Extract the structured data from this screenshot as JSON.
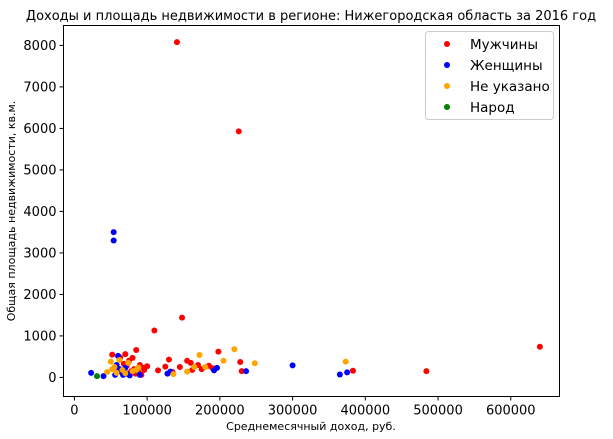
{
  "chart_data": {
    "type": "scatter",
    "title": "Доходы и площадь недвижимости в регионе: Нижегородская область за 2016 год",
    "xlabel": "Среднемесячный доход, руб.",
    "ylabel": "Общая площадь недвижимости, кв.м.",
    "xlim": [
      -15000,
      667000
    ],
    "ylim": [
      -460,
      8480
    ],
    "xticks": [
      0,
      100000,
      200000,
      300000,
      400000,
      500000,
      600000
    ],
    "xtick_labels": [
      "0",
      "100000",
      "200000",
      "300000",
      "400000",
      "500000",
      "600000"
    ],
    "yticks": [
      0,
      1000,
      2000,
      3000,
      4000,
      5000,
      6000,
      7000,
      8000
    ],
    "ytick_labels": [
      "0",
      "1000",
      "2000",
      "3000",
      "4000",
      "5000",
      "6000",
      "7000",
      "8000"
    ],
    "grid": false,
    "legend_position": "top-right",
    "series": [
      {
        "name": "Мужчины",
        "color": "#ff0000",
        "points": [
          [
            141000,
            8080
          ],
          [
            226000,
            5930
          ],
          [
            148000,
            1440
          ],
          [
            110000,
            1130
          ],
          [
            640000,
            740
          ],
          [
            484000,
            150
          ],
          [
            383000,
            160
          ],
          [
            52000,
            550
          ],
          [
            63000,
            480
          ],
          [
            70000,
            560
          ],
          [
            75000,
            400
          ],
          [
            80000,
            470
          ],
          [
            85000,
            660
          ],
          [
            90000,
            300
          ],
          [
            95000,
            230
          ],
          [
            100000,
            270
          ],
          [
            88000,
            120
          ],
          [
            78000,
            150
          ],
          [
            72000,
            280
          ],
          [
            82000,
            200
          ],
          [
            115000,
            170
          ],
          [
            125000,
            260
          ],
          [
            130000,
            430
          ],
          [
            145000,
            250
          ],
          [
            155000,
            400
          ],
          [
            160000,
            350
          ],
          [
            170000,
            300
          ],
          [
            175000,
            200
          ],
          [
            185000,
            280
          ],
          [
            190000,
            220
          ],
          [
            198000,
            620
          ],
          [
            228000,
            370
          ],
          [
            230000,
            150
          ],
          [
            96000,
            180
          ],
          [
            84000,
            90
          ],
          [
            68000,
            330
          ],
          [
            60000,
            150
          ],
          [
            92000,
            60
          ],
          [
            135000,
            130
          ],
          [
            162000,
            180
          ]
        ]
      },
      {
        "name": "Женщины",
        "color": "#0000ff",
        "points": [
          [
            54000,
            3500
          ],
          [
            54000,
            3300
          ],
          [
            23000,
            110
          ],
          [
            40000,
            30
          ],
          [
            56000,
            60
          ],
          [
            60000,
            520
          ],
          [
            62000,
            200
          ],
          [
            65000,
            120
          ],
          [
            67000,
            60
          ],
          [
            70000,
            230
          ],
          [
            72000,
            90
          ],
          [
            76000,
            50
          ],
          [
            58000,
            300
          ],
          [
            90000,
            60
          ],
          [
            128000,
            90
          ],
          [
            132000,
            140
          ],
          [
            192000,
            170
          ],
          [
            196000,
            230
          ],
          [
            236000,
            150
          ],
          [
            300000,
            290
          ],
          [
            365000,
            70
          ],
          [
            375000,
            120
          ]
        ]
      },
      {
        "name": "Не указано",
        "color": "#ffa500",
        "points": [
          [
            45000,
            130
          ],
          [
            50000,
            380
          ],
          [
            52000,
            200
          ],
          [
            55000,
            250
          ],
          [
            58000,
            110
          ],
          [
            62000,
            420
          ],
          [
            66000,
            180
          ],
          [
            70000,
            100
          ],
          [
            74000,
            350
          ],
          [
            80000,
            150
          ],
          [
            85000,
            180
          ],
          [
            88000,
            240
          ],
          [
            136000,
            80
          ],
          [
            155000,
            140
          ],
          [
            165000,
            250
          ],
          [
            172000,
            540
          ],
          [
            180000,
            250
          ],
          [
            205000,
            400
          ],
          [
            220000,
            680
          ],
          [
            248000,
            340
          ],
          [
            373000,
            380
          ]
        ]
      },
      {
        "name": "Народ",
        "color": "#008000",
        "points": [
          [
            31000,
            30
          ]
        ]
      }
    ]
  }
}
